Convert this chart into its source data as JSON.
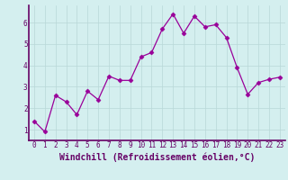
{
  "x": [
    0,
    1,
    2,
    3,
    4,
    5,
    6,
    7,
    8,
    9,
    10,
    11,
    12,
    13,
    14,
    15,
    16,
    17,
    18,
    19,
    20,
    21,
    22,
    23
  ],
  "y": [
    1.4,
    0.9,
    2.6,
    2.3,
    1.7,
    2.8,
    2.4,
    3.5,
    3.3,
    3.3,
    4.4,
    4.6,
    5.7,
    6.4,
    5.5,
    6.3,
    5.8,
    5.9,
    5.3,
    3.9,
    2.65,
    3.2,
    3.35,
    3.45
  ],
  "line_color": "#990099",
  "marker": "D",
  "markersize": 2.5,
  "linewidth": 0.9,
  "xlabel": "Windchill (Refroidissement éolien,°C)",
  "xlabel_fontsize": 7,
  "yticks": [
    1,
    2,
    3,
    4,
    5,
    6
  ],
  "xticks": [
    0,
    1,
    2,
    3,
    4,
    5,
    6,
    7,
    8,
    9,
    10,
    11,
    12,
    13,
    14,
    15,
    16,
    17,
    18,
    19,
    20,
    21,
    22,
    23
  ],
  "xlim": [
    -0.5,
    23.5
  ],
  "ylim": [
    0.5,
    6.8
  ],
  "bg_color": "#d4efef",
  "grid_color": "#b8d8d8",
  "tick_fontsize": 5.5,
  "tick_color": "#660066",
  "line_color_spine": "#660066"
}
